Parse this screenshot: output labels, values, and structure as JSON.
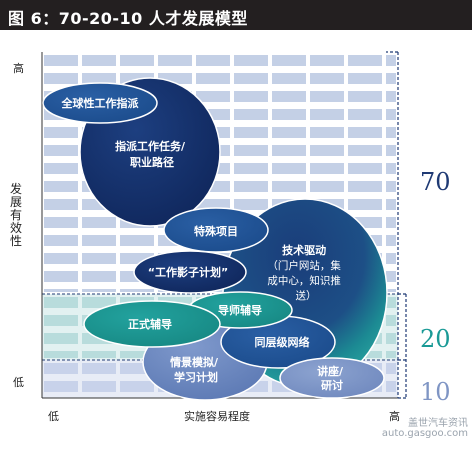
{
  "header": {
    "title": "图 6：70-20-10 人才发展模型"
  },
  "axes": {
    "y_title": "发展有效性",
    "y_high": "高",
    "y_low": "低",
    "x_title": "实施容易程度",
    "x_low": "低",
    "x_high": "高"
  },
  "tiers": [
    {
      "label": "70",
      "color": "#1f3a74"
    },
    {
      "label": "20",
      "color": "#1a9a96"
    },
    {
      "label": "10",
      "color": "#7f95c4"
    }
  ],
  "bubbles": [
    {
      "id": "global-assignment",
      "lines": [
        "全球性工作指派"
      ]
    },
    {
      "id": "assignment-career",
      "lines": [
        "指派工作任务/",
        "职业路径"
      ]
    },
    {
      "id": "special-project",
      "lines": [
        "特殊项目"
      ]
    },
    {
      "id": "tech-driven",
      "lines": [
        "技术驱动",
        "（门户网站，集",
        "成中心，知识推",
        "送）"
      ]
    },
    {
      "id": "shadow-program",
      "lines": [
        "“工作影子计划”"
      ]
    },
    {
      "id": "mentoring",
      "lines": [
        "导师辅导"
      ]
    },
    {
      "id": "formal-coaching",
      "lines": [
        "正式辅导"
      ]
    },
    {
      "id": "peer-network",
      "lines": [
        "同层级网络"
      ]
    },
    {
      "id": "simulation",
      "lines": [
        "情景模拟/",
        "学习计划"
      ]
    },
    {
      "id": "lecture",
      "lines": [
        "讲座/",
        "研讨"
      ]
    }
  ],
  "watermark": {
    "top": "盖世汽车资讯",
    "bottom": "auto.gasgoo.com"
  }
}
